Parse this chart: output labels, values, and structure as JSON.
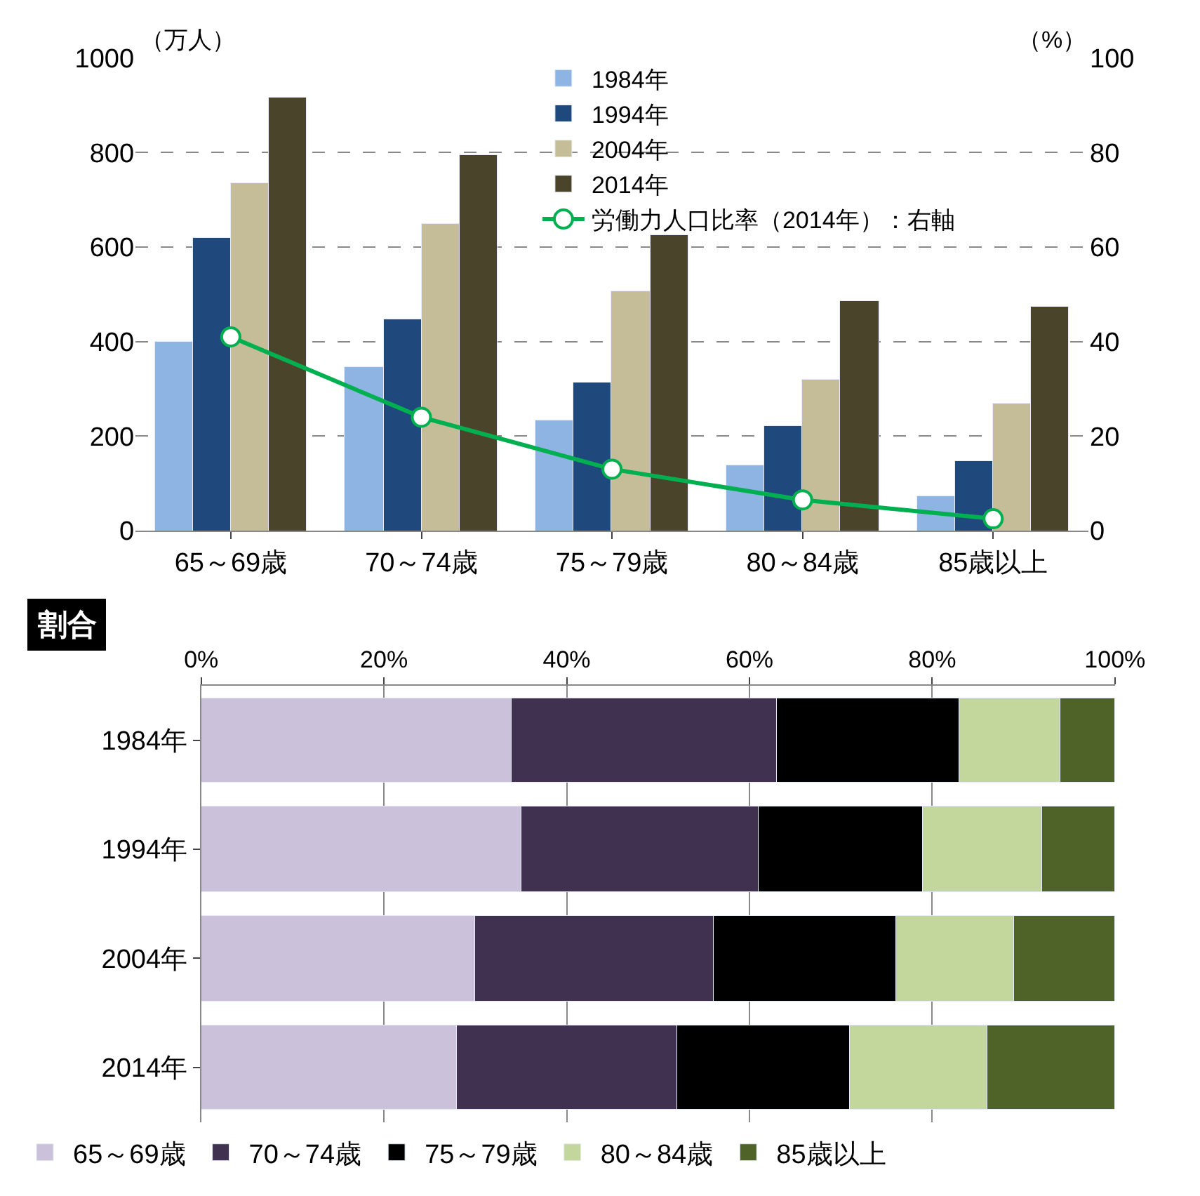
{
  "chart_data": [
    {
      "type": "bar",
      "ylabel": "（万人）",
      "y2label": "（%）",
      "categories": [
        "65～69歳",
        "70～74歳",
        "75～79歳",
        "80～84歳",
        "85歳以上"
      ],
      "series": [
        {
          "name": "1984年",
          "color": "#8eb4e3",
          "values": [
            400,
            347,
            233,
            137,
            73
          ]
        },
        {
          "name": "1994年",
          "color": "#1f497d",
          "values": [
            620,
            448,
            313,
            222,
            147
          ]
        },
        {
          "name": "2004年",
          "color": "#c4bd97",
          "values": [
            735,
            648,
            507,
            320,
            270
          ]
        },
        {
          "name": "2014年",
          "color": "#4a452a",
          "values": [
            918,
            795,
            627,
            487,
            475
          ]
        },
        {
          "name": "労働力人口比率（2014年）：右軸",
          "type": "line",
          "axis": "y2",
          "color": "#00b050",
          "marker": "circle",
          "values": [
            41,
            24,
            13,
            6.5,
            2.5
          ]
        }
      ],
      "ylim": [
        0,
        1000
      ],
      "yticks": [
        0,
        200,
        400,
        600,
        800,
        1000
      ],
      "y2lim": [
        0,
        100
      ],
      "y2ticks": [
        0,
        20,
        40,
        60,
        80,
        100
      ],
      "grid": "y",
      "legend": "top"
    },
    {
      "type": "bar",
      "title": "割合",
      "orientation": "horizontal",
      "stacked": true,
      "categories": [
        "1984年",
        "1994年",
        "2004年",
        "2014年"
      ],
      "series": [
        {
          "name": "65～69歳",
          "color": "#ccc1da",
          "values": [
            34,
            35,
            30,
            28
          ]
        },
        {
          "name": "70～74歳",
          "color": "#403151",
          "values": [
            29,
            26,
            26,
            24
          ]
        },
        {
          "name": "75～79歳",
          "color": "#000000",
          "values": [
            20,
            18,
            20,
            19
          ]
        },
        {
          "name": "80～84歳",
          "color": "#c3d69b",
          "values": [
            11,
            13,
            13,
            15
          ]
        },
        {
          "name": "85歳以上",
          "color": "#4f6228",
          "values": [
            6,
            8,
            11,
            14
          ]
        }
      ],
      "xlim": [
        0,
        100
      ],
      "xticks": [
        {
          "value": 0,
          "label": "0%"
        },
        {
          "value": 20,
          "label": "20%"
        },
        {
          "value": 40,
          "label": "40%"
        },
        {
          "value": 60,
          "label": "60%"
        },
        {
          "value": 80,
          "label": "80%"
        },
        {
          "value": 100,
          "label": "100%"
        }
      ],
      "grid": "x",
      "legend": "bottom"
    }
  ]
}
